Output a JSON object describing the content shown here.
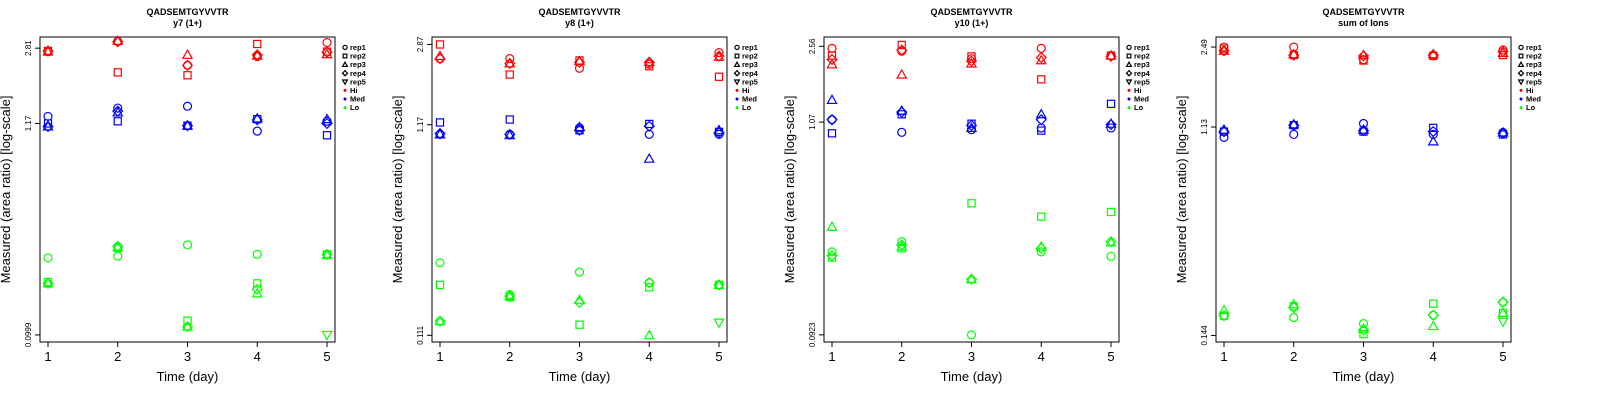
{
  "colors": {
    "Hi": "#ff0000",
    "Med": "#0000ff",
    "Lo": "#00ff00"
  },
  "chart_data": [
    {
      "type": "scatter",
      "title": "QADSEMTGYVVTR",
      "subtitle": "y7 (1+)",
      "xlabel": "Time (day)",
      "ylabel": "Measured (area ratio) [log-scale]",
      "x_ticks": [
        "1",
        "2",
        "3",
        "4",
        "5"
      ],
      "y_ticks": [
        {
          "value": 2.81,
          "label": "2.81"
        },
        {
          "value": 1.17,
          "label": "1.17"
        },
        {
          "value": 0.0999,
          "label": "0.0999"
        }
      ],
      "ylim": [
        0.092,
        3.2
      ],
      "legend": [
        "rep1",
        "rep2",
        "rep3",
        "rep4",
        "rep5",
        "Hi",
        "Med",
        "Lo"
      ],
      "series": [
        {
          "name": "rep1",
          "group": "Hi",
          "values": [
            2.7,
            3.04,
            2.3,
            2.55,
            3.0
          ]
        },
        {
          "name": "rep2",
          "group": "Hi",
          "values": [
            2.72,
            2.12,
            2.05,
            2.95,
            2.7
          ]
        },
        {
          "name": "rep3",
          "group": "Hi",
          "values": [
            2.7,
            3.06,
            2.6,
            2.58,
            2.62
          ]
        },
        {
          "name": "rep4",
          "group": "Hi",
          "values": [
            2.72,
            3.03,
            2.3,
            2.6,
            2.68
          ]
        },
        {
          "name": "rep1",
          "group": "Med",
          "values": [
            1.27,
            1.4,
            1.43,
            1.07,
            1.2
          ]
        },
        {
          "name": "rep2",
          "group": "Med",
          "values": [
            1.17,
            1.2,
            1.14,
            1.23,
            1.02
          ]
        },
        {
          "name": "rep3",
          "group": "Med",
          "values": [
            1.13,
            1.33,
            1.14,
            1.24,
            1.23
          ]
        },
        {
          "name": "rep4",
          "group": "Med",
          "values": [
            1.13,
            1.35,
            1.14,
            1.22,
            1.17
          ]
        },
        {
          "name": "rep1",
          "group": "Lo",
          "values": [
            0.245,
            0.25,
            0.285,
            0.255,
            0.255
          ]
        },
        {
          "name": "rep2",
          "group": "Lo",
          "values": [
            0.185,
            0.275,
            0.118,
            0.182,
            0.255
          ]
        },
        {
          "name": "rep3",
          "group": "Lo",
          "values": [
            0.182,
            0.278,
            0.11,
            0.162,
            0.253
          ]
        },
        {
          "name": "rep4",
          "group": "Lo",
          "values": [
            0.182,
            0.28,
            0.11,
            0.17,
            0.255
          ]
        },
        {
          "name": "rep5",
          "group": "Lo",
          "values": [
            null,
            null,
            null,
            null,
            0.0999
          ]
        }
      ]
    },
    {
      "type": "scatter",
      "title": "QADSEMTGYVVTR",
      "subtitle": "y8 (1+)",
      "xlabel": "Time (day)",
      "ylabel": "Measured (area ratio) [log-scale]",
      "x_ticks": [
        "1",
        "2",
        "3",
        "4",
        "5"
      ],
      "y_ticks": [
        {
          "value": 2.87,
          "label": "2.87"
        },
        {
          "value": 1.17,
          "label": "1.17"
        },
        {
          "value": 0.111,
          "label": "0.111"
        }
      ],
      "ylim": [
        0.103,
        3.12
      ],
      "legend": [
        "rep1",
        "rep2",
        "rep3",
        "rep4",
        "rep5",
        "Hi",
        "Med",
        "Lo"
      ],
      "series": [
        {
          "name": "rep1",
          "group": "Hi",
          "values": [
            2.45,
            2.45,
            2.2,
            2.3,
            2.62
          ]
        },
        {
          "name": "rep2",
          "group": "Hi",
          "values": [
            2.87,
            2.05,
            2.4,
            2.25,
            2.0
          ]
        },
        {
          "name": "rep3",
          "group": "Hi",
          "values": [
            2.52,
            2.32,
            2.38,
            2.36,
            2.5
          ]
        },
        {
          "name": "rep4",
          "group": "Hi",
          "values": [
            2.45,
            2.32,
            2.35,
            2.35,
            2.52
          ]
        },
        {
          "name": "rep1",
          "group": "Med",
          "values": [
            1.05,
            1.05,
            1.13,
            1.05,
            1.05
          ]
        },
        {
          "name": "rep2",
          "group": "Med",
          "values": [
            1.2,
            1.24,
            1.1,
            1.18,
            1.08
          ]
        },
        {
          "name": "rep3",
          "group": "Med",
          "values": [
            1.05,
            1.04,
            1.14,
            0.8,
            1.1
          ]
        },
        {
          "name": "rep4",
          "group": "Med",
          "values": [
            1.06,
            1.05,
            1.1,
            1.15,
            1.07
          ]
        },
        {
          "name": "rep1",
          "group": "Lo",
          "values": [
            0.25,
            0.175,
            0.225,
            0.2,
            0.195
          ]
        },
        {
          "name": "rep2",
          "group": "Lo",
          "values": [
            0.195,
            0.17,
            0.125,
            0.19,
            0.195
          ]
        },
        {
          "name": "rep3",
          "group": "Lo",
          "values": [
            0.13,
            0.172,
            0.165,
            0.111,
            0.195
          ]
        },
        {
          "name": "rep4",
          "group": "Lo",
          "values": [
            0.13,
            0.172,
            0.16,
            0.2,
            0.195
          ]
        },
        {
          "name": "rep5",
          "group": "Lo",
          "values": [
            null,
            null,
            null,
            null,
            0.128
          ]
        }
      ]
    },
    {
      "type": "scatter",
      "title": "QADSEMTGYVVTR",
      "subtitle": "y10 (1+)",
      "xlabel": "Time (day)",
      "ylabel": "Measured (area ratio) [log-scale]",
      "x_ticks": [
        "1",
        "2",
        "3",
        "4",
        "5"
      ],
      "y_ticks": [
        {
          "value": 2.56,
          "label": "2.56"
        },
        {
          "value": 1.07,
          "label": "1.07"
        },
        {
          "value": 0.0923,
          "label": "0.0923"
        }
      ],
      "ylim": [
        0.085,
        2.85
      ],
      "legend": [
        "rep1",
        "rep2",
        "rep3",
        "rep4",
        "rep5",
        "Hi",
        "Med",
        "Lo"
      ],
      "series": [
        {
          "name": "rep1",
          "group": "Hi",
          "values": [
            2.5,
            2.42,
            2.22,
            2.5,
            2.3
          ]
        },
        {
          "name": "rep2",
          "group": "Hi",
          "values": [
            2.3,
            2.6,
            2.28,
            1.75,
            2.3
          ]
        },
        {
          "name": "rep3",
          "group": "Hi",
          "values": [
            2.08,
            1.85,
            2.1,
            2.18,
            2.3
          ]
        },
        {
          "name": "rep4",
          "group": "Hi",
          "values": [
            2.2,
            2.45,
            2.16,
            2.25,
            2.28
          ]
        },
        {
          "name": "rep1",
          "group": "Med",
          "values": [
            1.1,
            0.95,
            0.98,
            1.0,
            1.0
          ]
        },
        {
          "name": "rep2",
          "group": "Med",
          "values": [
            0.94,
            1.17,
            1.05,
            0.97,
            1.32
          ]
        },
        {
          "name": "rep3",
          "group": "Med",
          "values": [
            1.38,
            1.22,
            1.0,
            1.17,
            1.05
          ]
        },
        {
          "name": "rep4",
          "group": "Med",
          "values": [
            1.1,
            1.2,
            1.03,
            1.1,
            1.04
          ]
        },
        {
          "name": "rep1",
          "group": "Lo",
          "values": [
            0.24,
            0.27,
            0.0923,
            0.24,
            0.228
          ]
        },
        {
          "name": "rep2",
          "group": "Lo",
          "values": [
            0.225,
            0.25,
            0.42,
            0.36,
            0.38
          ]
        },
        {
          "name": "rep3",
          "group": "Lo",
          "values": [
            0.32,
            0.255,
            0.175,
            0.255,
            0.268
          ]
        },
        {
          "name": "rep4",
          "group": "Lo",
          "values": [
            0.23,
            0.26,
            0.175,
            0.25,
            0.27
          ]
        },
        {
          "name": "rep5",
          "group": "Lo",
          "values": [
            null,
            null,
            null,
            null,
            null
          ]
        }
      ]
    },
    {
      "type": "scatter",
      "title": "QADSEMTGYVVTR",
      "subtitle": "sum of Ions",
      "xlabel": "Time (day)",
      "ylabel": "Measured (area ratio) [log-scale]",
      "x_ticks": [
        "1",
        "2",
        "3",
        "4",
        "5"
      ],
      "y_ticks": [
        {
          "value": 2.49,
          "label": "2.49"
        },
        {
          "value": 1.13,
          "label": "1.13"
        },
        {
          "value": 0.144,
          "label": "0.144"
        }
      ],
      "ylim": [
        0.135,
        2.75
      ],
      "legend": [
        "rep1",
        "rep2",
        "rep3",
        "rep4",
        "rep5",
        "Hi",
        "Med",
        "Lo"
      ],
      "series": [
        {
          "name": "rep1",
          "group": "Hi",
          "values": [
            2.49,
            2.49,
            2.2,
            2.3,
            2.42
          ]
        },
        {
          "name": "rep2",
          "group": "Hi",
          "values": [
            2.45,
            2.3,
            2.18,
            2.28,
            2.3
          ]
        },
        {
          "name": "rep3",
          "group": "Hi",
          "values": [
            2.4,
            2.32,
            2.3,
            2.32,
            2.35
          ]
        },
        {
          "name": "rep4",
          "group": "Hi",
          "values": [
            2.4,
            2.3,
            2.28,
            2.3,
            2.38
          ]
        },
        {
          "name": "rep1",
          "group": "Med",
          "values": [
            1.02,
            1.05,
            1.17,
            1.05,
            1.07
          ]
        },
        {
          "name": "rep2",
          "group": "Med",
          "values": [
            1.08,
            1.15,
            1.08,
            1.12,
            1.05
          ]
        },
        {
          "name": "rep3",
          "group": "Med",
          "values": [
            1.1,
            1.16,
            1.1,
            0.98,
            1.07
          ]
        },
        {
          "name": "rep4",
          "group": "Med",
          "values": [
            1.08,
            1.15,
            1.09,
            1.08,
            1.06
          ]
        },
        {
          "name": "rep1",
          "group": "Lo",
          "values": [
            0.175,
            0.172,
            0.162,
            0.176,
            0.2
          ]
        },
        {
          "name": "rep2",
          "group": "Lo",
          "values": [
            0.175,
            0.192,
            0.146,
            0.197,
            0.18
          ]
        },
        {
          "name": "rep3",
          "group": "Lo",
          "values": [
            0.185,
            0.196,
            0.154,
            0.158,
            0.18
          ]
        },
        {
          "name": "rep4",
          "group": "Lo",
          "values": [
            0.175,
            0.19,
            0.152,
            0.176,
            0.2
          ]
        },
        {
          "name": "rep5",
          "group": "Lo",
          "values": [
            null,
            null,
            null,
            null,
            0.165
          ]
        }
      ]
    }
  ]
}
